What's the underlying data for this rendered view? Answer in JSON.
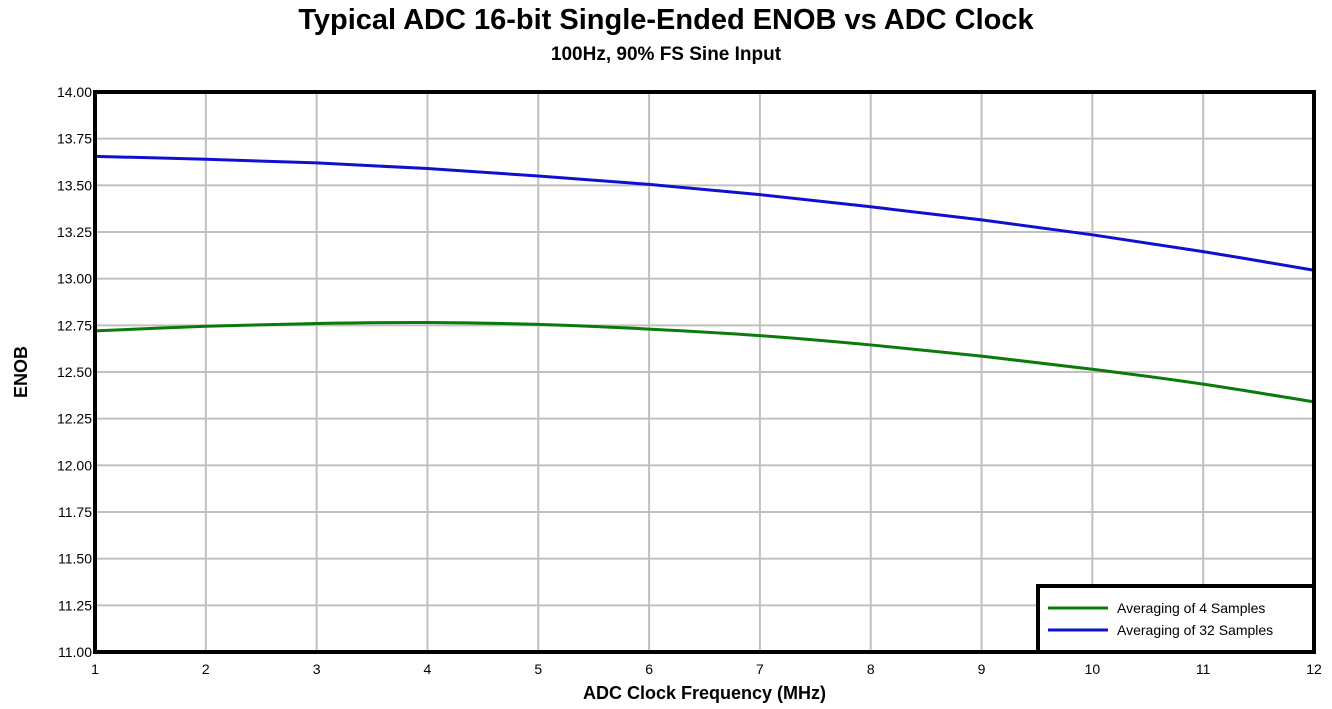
{
  "chart_data": {
    "type": "line",
    "title": "Typical ADC 16-bit Single-Ended ENOB vs ADC Clock",
    "subtitle": "100Hz, 90% FS Sine Input",
    "xlabel": "ADC Clock Frequency (MHz)",
    "ylabel": "ENOB",
    "xlim": [
      1,
      12
    ],
    "ylim": [
      11.0,
      14.0
    ],
    "x_ticks": [
      "1",
      "2",
      "3",
      "4",
      "5",
      "6",
      "7",
      "8",
      "9",
      "10",
      "11",
      "12"
    ],
    "y_ticks": [
      "11.00",
      "11.25",
      "11.50",
      "11.75",
      "12.00",
      "12.25",
      "12.50",
      "12.75",
      "13.00",
      "13.25",
      "13.50",
      "13.75",
      "14.00"
    ],
    "grid": true,
    "legend_position": "bottom-right",
    "x": [
      1,
      2,
      3,
      4,
      5,
      6,
      7,
      8,
      9,
      10,
      11,
      12
    ],
    "series": [
      {
        "name": "Averaging of 4 Samples",
        "color": "#0a7a0a",
        "values": [
          12.72,
          12.745,
          12.76,
          12.765,
          12.755,
          12.73,
          12.695,
          12.645,
          12.585,
          12.515,
          12.435,
          12.34
        ]
      },
      {
        "name": "Averaging of 32 Samples",
        "color": "#1010d0",
        "values": [
          13.655,
          13.64,
          13.62,
          13.59,
          13.55,
          13.505,
          13.45,
          13.385,
          13.315,
          13.235,
          13.145,
          13.045
        ]
      }
    ]
  }
}
